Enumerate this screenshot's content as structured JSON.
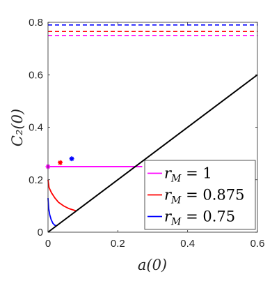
{
  "chart_data": {
    "type": "line",
    "xlabel": "a(0)",
    "ylabel": "C₂(0)",
    "xlim": [
      0,
      0.6
    ],
    "ylim": [
      0,
      0.8
    ],
    "xticks": [
      0,
      0.2,
      0.4,
      0.6
    ],
    "yticks": [
      0,
      0.2,
      0.4,
      0.6,
      0.8
    ],
    "xtick_labels": [
      "0",
      "0.2",
      "0.4",
      "0.6"
    ],
    "ytick_labels": [
      "0",
      "0.2",
      "0.4",
      "0.6",
      "0.8"
    ],
    "grid": false,
    "legend_position": "bottom-right",
    "series": [
      {
        "name": "r_M = 1",
        "legend_text": [
          "r",
          "M",
          " = 1"
        ],
        "color": "#ff00ff",
        "x": [
          0,
          0.27
        ],
        "y": [
          0.25,
          0.25
        ],
        "asymptote": 0.75,
        "marker_x": 0.0,
        "marker_y": 0.25
      },
      {
        "name": "r_M = 0.875",
        "legend_text": [
          "r",
          "M",
          " = 0.875"
        ],
        "color": "#ff0000",
        "x": [
          0,
          0.003,
          0.01,
          0.02,
          0.03,
          0.045,
          0.06,
          0.081
        ],
        "y": [
          0.2,
          0.17,
          0.15,
          0.13,
          0.114,
          0.1,
          0.09,
          0.081
        ],
        "asymptote": 0.765,
        "marker_x": 0.035,
        "marker_y": 0.265
      },
      {
        "name": "r_M = 0.75",
        "legend_text": [
          "r",
          "M",
          " = 0.75"
        ],
        "color": "#0000ff",
        "x": [
          0,
          0.002,
          0.005,
          0.009,
          0.014,
          0.019,
          0.024
        ],
        "y": [
          0.13,
          0.09,
          0.066,
          0.048,
          0.034,
          0.027,
          0.024
        ],
        "asymptote": 0.79,
        "marker_x": 0.068,
        "marker_y": 0.28
      },
      {
        "name": "",
        "color": "#000000",
        "x": [
          0,
          0.6
        ],
        "y": [
          0,
          0.6
        ]
      }
    ]
  }
}
